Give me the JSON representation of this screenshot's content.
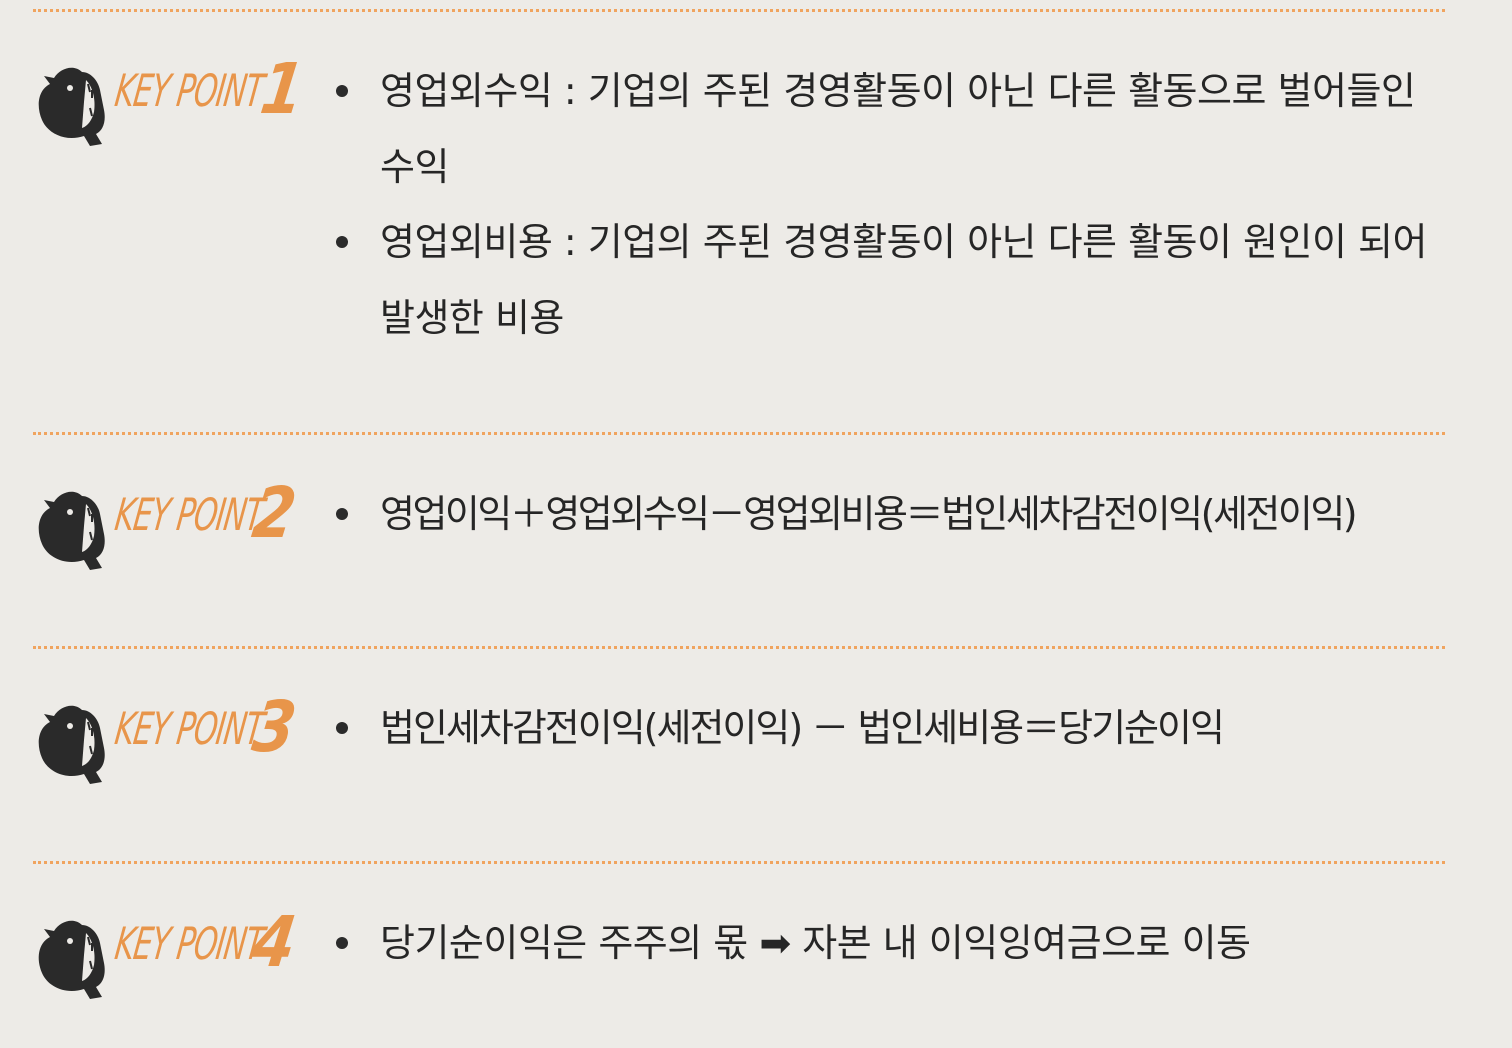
{
  "colors": {
    "accent": "#e8954a",
    "background": "#edebe7",
    "text": "#262626"
  },
  "key_point_label": "KEY POINT",
  "sections": [
    {
      "number": "1",
      "items": [
        "영업외수익 : 기업의 주된 경영활동이 아닌 다른 활동으로 벌어들인 수익",
        "영업외비용 : 기업의 주된 경영활동이 아닌 다른 활동이 원인이 되어 발생한 비용"
      ]
    },
    {
      "number": "2",
      "items": [
        "영업이익＋영업외수익－영업외비용＝법인세차감전이익(세전이익)"
      ]
    },
    {
      "number": "3",
      "items": [
        "법인세차감전이익(세전이익) － 법인세비용＝당기순이익"
      ]
    },
    {
      "number": "4",
      "items": [
        "당기순이익은 주주의 몫 ➡ 자본 내 이익잉여금으로 이동"
      ]
    }
  ]
}
